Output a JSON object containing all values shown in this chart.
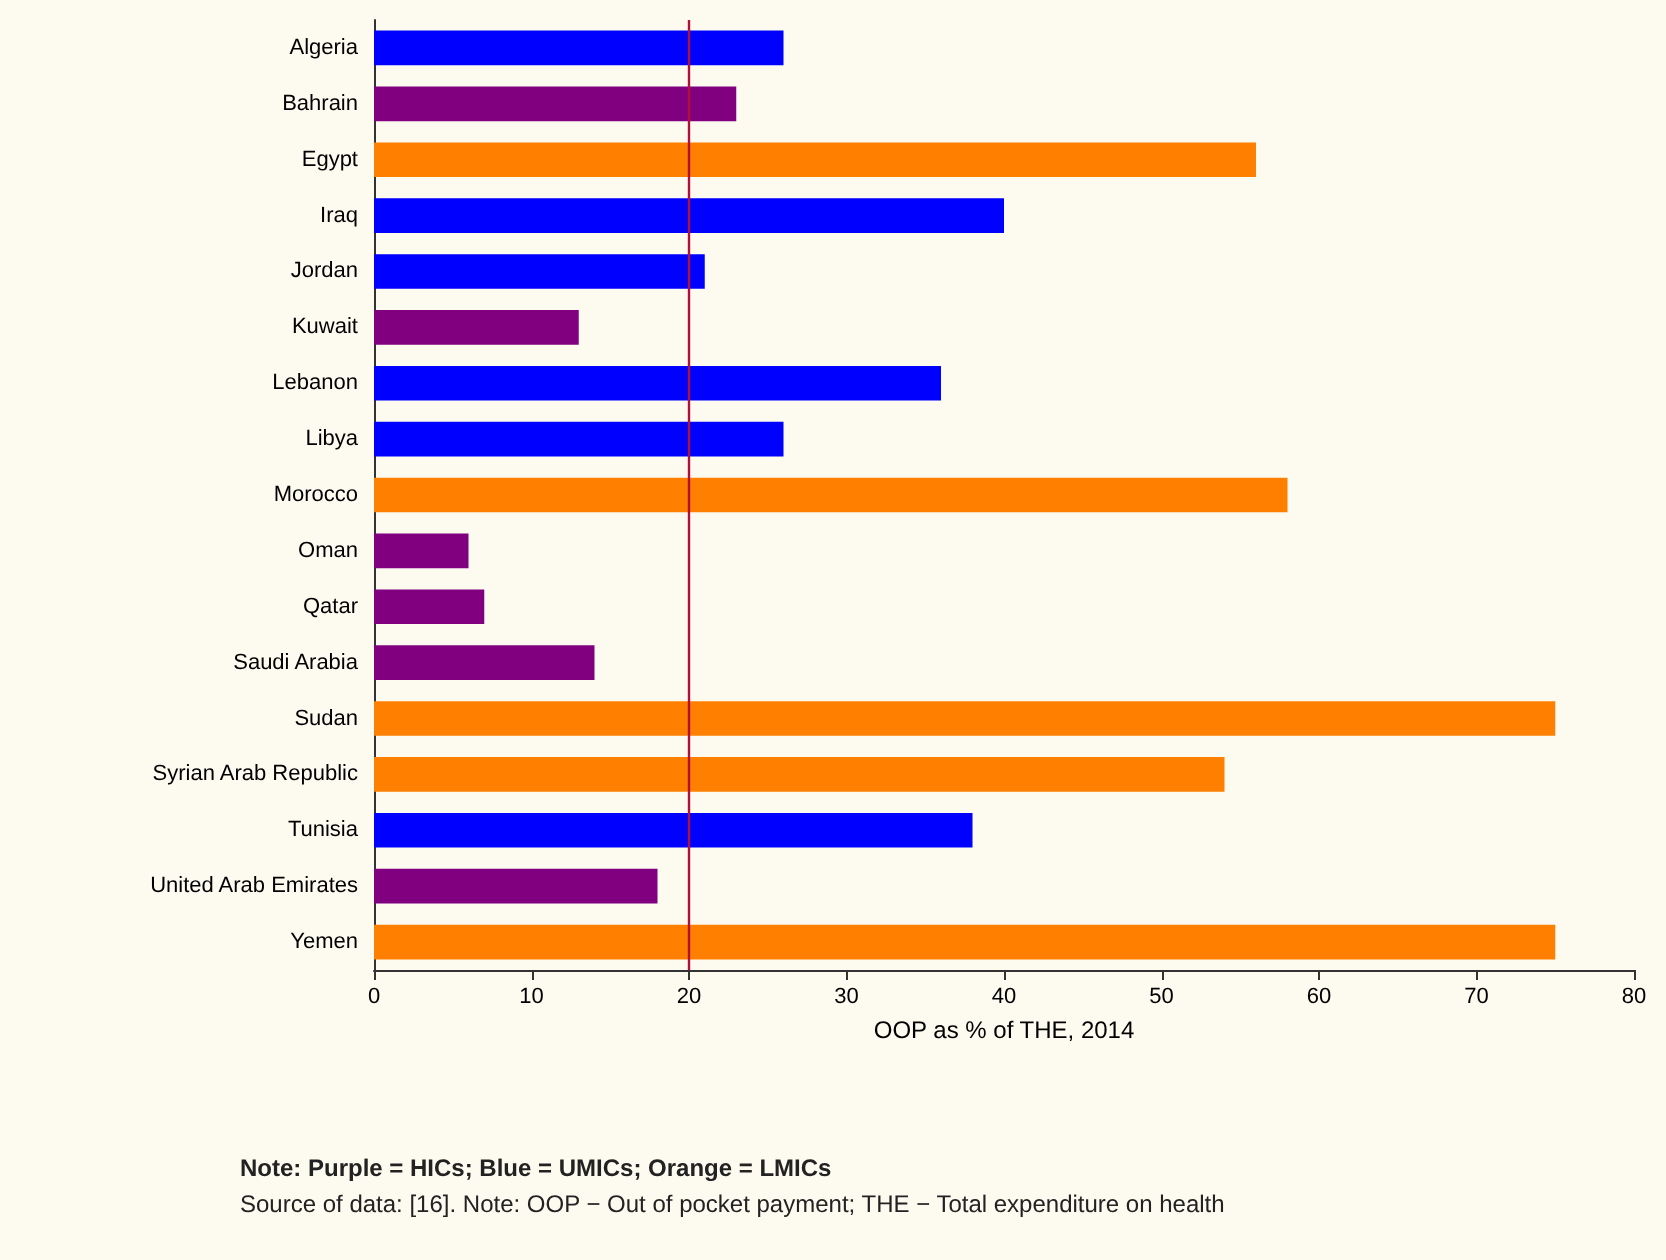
{
  "chart_data": {
    "type": "bar",
    "orientation": "horizontal",
    "xlabel": "OOP as % of THE, 2014",
    "categories": [
      "Algeria",
      "Bahrain",
      "Egypt",
      "Iraq",
      "Jordan",
      "Kuwait",
      "Lebanon",
      "Libya",
      "Morocco",
      "Oman",
      "Qatar",
      "Saudi Arabia",
      "Sudan",
      "Syrian Arab Republic",
      "Tunisia",
      "United Arab Emirates",
      "Yemen"
    ],
    "values": [
      26,
      23,
      56,
      40,
      21,
      13,
      36,
      26,
      58,
      6,
      7,
      14,
      75,
      54,
      38,
      18,
      75
    ],
    "colors": [
      "#0000ff",
      "#800080",
      "#ff7f00",
      "#0000ff",
      "#0000ff",
      "#800080",
      "#0000ff",
      "#0000ff",
      "#ff7f00",
      "#800080",
      "#800080",
      "#800080",
      "#ff7f00",
      "#ff7f00",
      "#0000ff",
      "#800080",
      "#ff7f00"
    ],
    "xlim": [
      0,
      80
    ],
    "xticks": [
      0,
      10,
      20,
      30,
      40,
      50,
      60,
      70,
      80
    ],
    "ref_lines": [
      {
        "axis": "x",
        "value": 20,
        "color": "#b0103c"
      }
    ],
    "grid": false,
    "annotations": [
      "Note: Purple = HICs; Blue = UMICs; Orange = LMICs",
      "Source of data: [16]. Note: OOP − Out of pocket payment; THE − Total expenditure on health"
    ]
  }
}
